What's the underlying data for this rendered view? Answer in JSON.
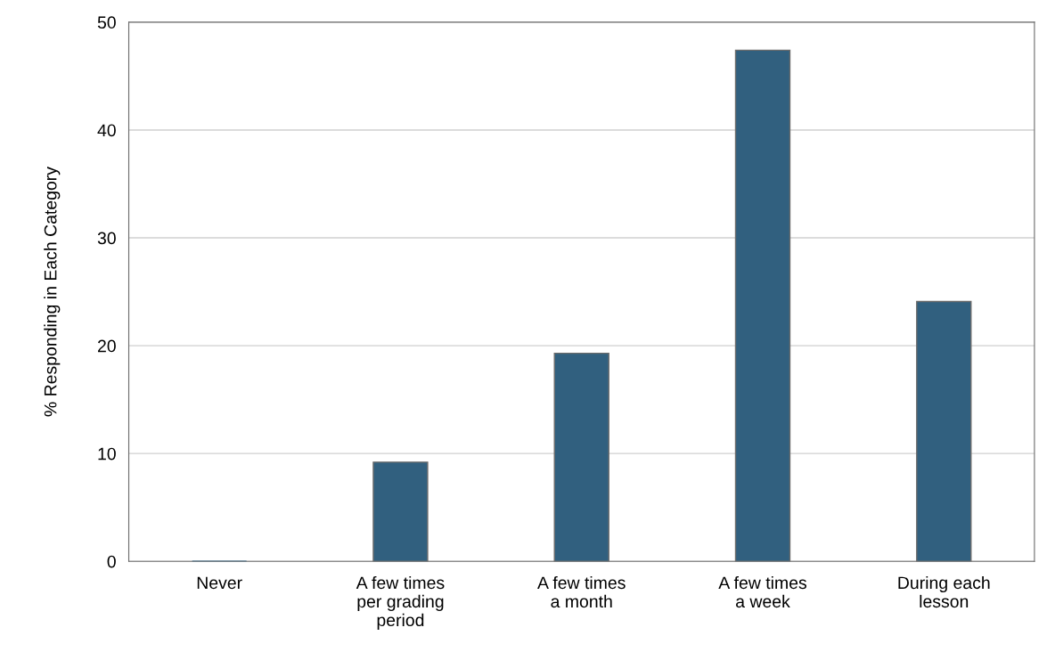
{
  "chart_data": {
    "type": "bar",
    "ylabel": "% Responding in Each Category",
    "categories": [
      "Never",
      "A few times\nper grading\nperiod",
      "A few times\na month",
      "A few times\na week",
      "During each\nlesson"
    ],
    "values": [
      0,
      9.2,
      19.3,
      47.4,
      24.1
    ],
    "color": "#31607f",
    "ylim": [
      0,
      50
    ],
    "yticks": [
      0,
      10,
      20,
      30,
      40,
      50
    ],
    "grid": "y"
  }
}
